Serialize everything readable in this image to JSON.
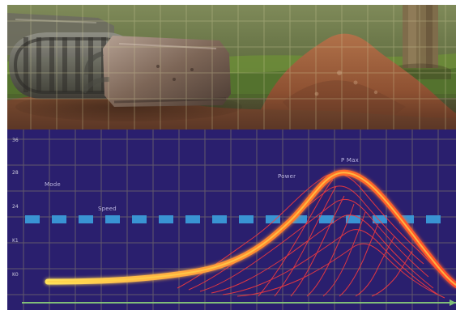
{
  "labels": {
    "mode": "Mode",
    "speed": "Speed",
    "power": "Power",
    "pmax": "P Max"
  },
  "y_ticks": [
    "36",
    "28",
    "24",
    "K1",
    "K0"
  ],
  "colors": {
    "chart_bg": "#2a1f6e",
    "grid": "#c7c66a",
    "dash": "#3a9ad8",
    "curve_hot": "#ff7a2a",
    "curve_glow": "#ffd24a",
    "mesh": "#ff3b3b",
    "white": "#ffffff"
  },
  "icons": {
    "bulldozer": "bulldozer-icon",
    "soil": "soil-pile-icon",
    "tree": "tree-trunk-icon"
  }
}
